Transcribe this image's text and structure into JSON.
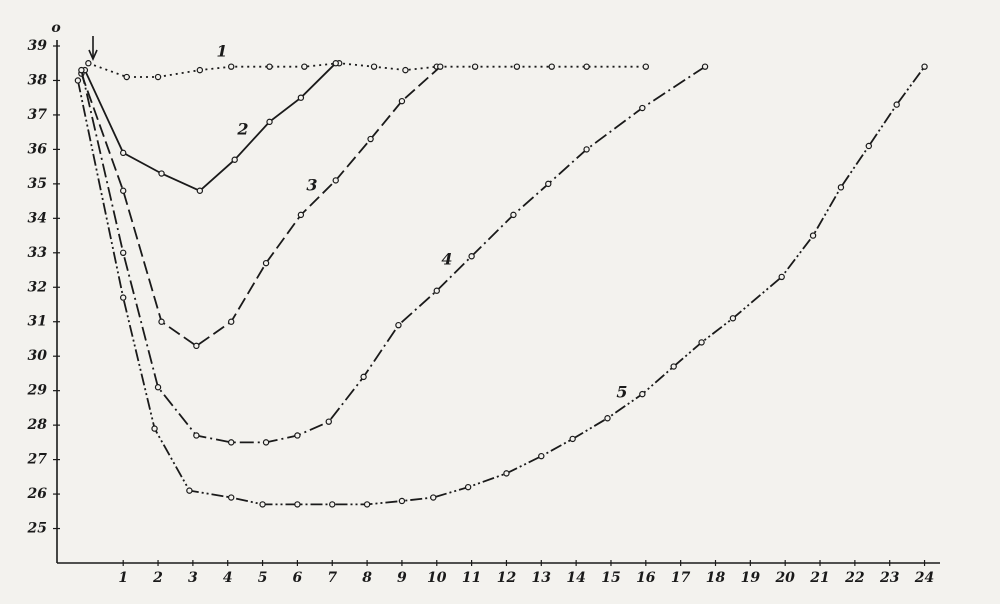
{
  "chart_data": {
    "type": "line",
    "y_unit": "o",
    "xlim": [
      -0.9,
      24.3
    ],
    "ylim": [
      24,
      39
    ],
    "xticks": [
      1,
      2,
      3,
      4,
      5,
      6,
      7,
      8,
      9,
      10,
      11,
      12,
      13,
      14,
      15,
      16,
      17,
      18,
      19,
      20,
      21,
      22,
      23,
      24
    ],
    "yticks": [
      25,
      26,
      27,
      28,
      29,
      30,
      31,
      32,
      33,
      34,
      35,
      36,
      37,
      38,
      39
    ],
    "series": [
      {
        "name": "1",
        "color": "#1a1a1a",
        "dash": "2,4",
        "x": [
          0,
          1.1,
          2,
          3.2,
          4.1,
          5.2,
          6.2,
          7.2,
          8.2,
          9.1,
          10,
          11.1,
          12.3,
          13.3,
          14.3,
          16
        ],
        "values": [
          38.5,
          38.1,
          38.1,
          38.3,
          38.4,
          38.4,
          38.4,
          38.5,
          38.4,
          38.3,
          38.4,
          38.4,
          38.4,
          38.4,
          38.4,
          38.4
        ]
      },
      {
        "name": "2",
        "color": "#1a1a1a",
        "dash": "none",
        "x": [
          -0.1,
          1,
          2.1,
          3.2,
          4.2,
          5.2,
          6.1,
          7.1
        ],
        "values": [
          38.3,
          35.9,
          35.3,
          34.8,
          35.7,
          36.8,
          37.5,
          38.5
        ]
      },
      {
        "name": "3",
        "color": "#1a1a1a",
        "dash": "13,5",
        "x": [
          -0.2,
          1,
          2.1,
          3.1,
          4.1,
          5.1,
          6.1,
          7.1,
          8.1,
          9,
          10.1
        ],
        "values": [
          38.2,
          34.8,
          31.0,
          30.3,
          31.0,
          32.7,
          34.1,
          35.1,
          36.3,
          37.4,
          38.4
        ]
      },
      {
        "name": "4",
        "color": "#1a1a1a",
        "dash": "14,4,2,4",
        "x": [
          -0.2,
          1,
          2,
          3.1,
          4.1,
          5.1,
          6,
          6.9,
          7.9,
          8.9,
          10,
          11,
          12.2,
          13.2,
          14.3,
          15.9,
          17.7
        ],
        "values": [
          38.3,
          33.0,
          29.1,
          27.7,
          27.5,
          27.5,
          27.7,
          28.1,
          29.4,
          30.9,
          31.9,
          32.9,
          34.1,
          35.0,
          36.0,
          37.2,
          38.4
        ]
      },
      {
        "name": "5",
        "color": "#1a1a1a",
        "dash": "12,3,2,3,2,3",
        "x": [
          -0.3,
          1,
          1.9,
          2.9,
          4.1,
          5.0,
          6.0,
          7.0,
          8.0,
          9.0,
          9.9,
          10.9,
          12.0,
          13.0,
          13.9,
          14.9,
          15.9,
          16.8,
          17.6,
          18.5,
          19.9,
          20.8,
          21.6,
          22.4,
          23.2,
          24.0
        ],
        "values": [
          38.0,
          31.7,
          27.9,
          26.1,
          25.9,
          25.7,
          25.7,
          25.7,
          25.7,
          25.8,
          25.9,
          26.2,
          26.6,
          27.1,
          27.6,
          28.2,
          28.9,
          29.7,
          30.4,
          31.1,
          32.3,
          33.5,
          34.9,
          36.1,
          37.3,
          38.4
        ]
      }
    ]
  }
}
